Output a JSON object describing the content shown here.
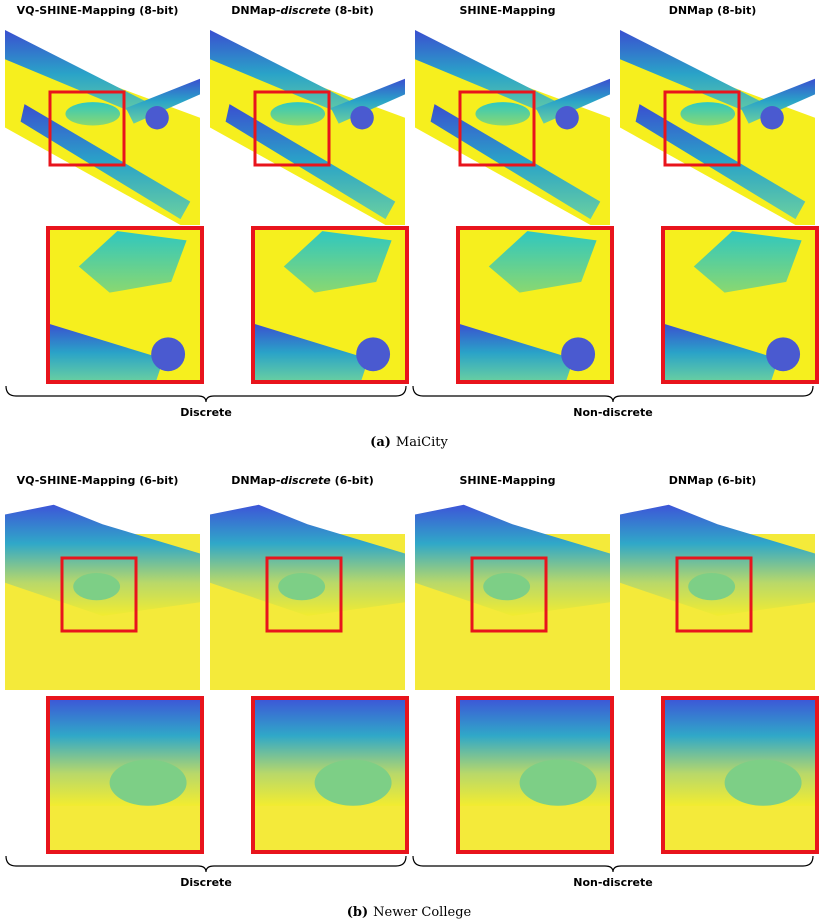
{
  "panels": [
    {
      "columns": [
        [
          {
            "text": "VQ-SHINE-Mapping (8-bit)"
          }
        ],
        [
          {
            "text": "DNMap-"
          },
          {
            "text": "discrete",
            "italic": true
          },
          {
            "text": " (8-bit)"
          }
        ],
        [
          {
            "text": "SHINE-Mapping"
          }
        ],
        [
          {
            "text": "DNMap (8-bit)"
          }
        ]
      ],
      "groups": [
        "Discrete",
        "Non-discrete"
      ],
      "caption": {
        "label": "(a)",
        "text": "MaiCity"
      }
    },
    {
      "columns": [
        [
          {
            "text": "VQ-SHINE-Mapping (6-bit)"
          }
        ],
        [
          {
            "text": "DNMap-"
          },
          {
            "text": "discrete",
            "italic": true
          },
          {
            "text": " (6-bit)"
          }
        ],
        [
          {
            "text": "SHINE-Mapping"
          }
        ],
        [
          {
            "text": "DNMap (6-bit)"
          }
        ]
      ],
      "groups": [
        "Discrete",
        "Non-discrete"
      ],
      "caption": {
        "label": "(b)",
        "text": "Newer College"
      }
    }
  ]
}
